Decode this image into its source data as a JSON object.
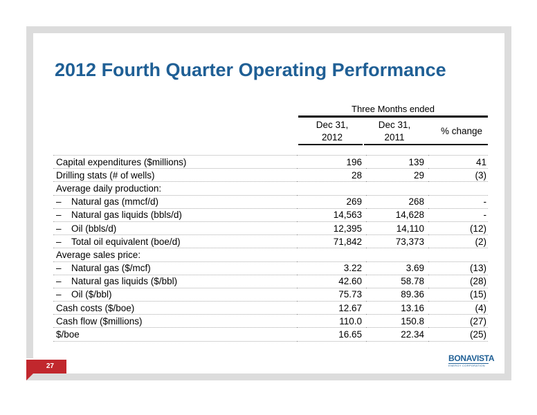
{
  "slide": {
    "title": "2012 Fourth Quarter Operating Performance",
    "page_number": "27",
    "logo": {
      "name": "BONAVISTA",
      "subtitle": "ENERGY CORPORATION"
    }
  },
  "table": {
    "group_header": "Three Months ended",
    "col1_line1": "Dec 31,",
    "col1_line2": "2012",
    "col2_line1": "Dec 31,",
    "col2_line2": "2011",
    "col3": "% change",
    "rows": [
      {
        "label": "Capital expenditures ($millions)",
        "v2012": "196",
        "v2011": "139",
        "change": "41"
      },
      {
        "label": "Drilling stats (# of wells)",
        "v2012": "28",
        "v2011": "29",
        "change": "(3)"
      },
      {
        "label": "Average daily production:",
        "v2012": "",
        "v2011": "",
        "change": ""
      },
      {
        "label": "Natural gas (mmcf/d)",
        "v2012": "269",
        "v2011": "268",
        "change": "-"
      },
      {
        "label": "Natural gas liquids (bbls/d)",
        "v2012": "14,563",
        "v2011": "14,628",
        "change": "-"
      },
      {
        "label": "Oil (bbls/d)",
        "v2012": "12,395",
        "v2011": "14,110",
        "change": "(12)"
      },
      {
        "label": "Total oil equivalent (boe/d)",
        "v2012": "71,842",
        "v2011": "73,373",
        "change": "(2)"
      },
      {
        "label": "Average sales price:",
        "v2012": "",
        "v2011": "",
        "change": ""
      },
      {
        "label": "Natural gas ($/mcf)",
        "v2012": "3.22",
        "v2011": "3.69",
        "change": "(13)"
      },
      {
        "label": "Natural gas liquids ($/bbl)",
        "v2012": "42.60",
        "v2011": "58.78",
        "change": "(28)"
      },
      {
        "label": "Oil ($/bbl)",
        "v2012": "75.73",
        "v2011": "89.36",
        "change": "(15)"
      },
      {
        "label": "Cash costs ($/boe)",
        "v2012": "12.67",
        "v2011": "13.16",
        "change": "(4)"
      },
      {
        "label": "Cash flow ($millions)",
        "v2012": "110.0",
        "v2011": "150.8",
        "change": "(27)"
      },
      {
        "label": "$/boe",
        "v2012": "16.65",
        "v2011": "22.34",
        "change": "(25)"
      }
    ],
    "dash_glyph": "–"
  },
  "colors": {
    "title": "#1f5f95",
    "badge": "#c1272d",
    "frame": "#dcdcdc"
  }
}
